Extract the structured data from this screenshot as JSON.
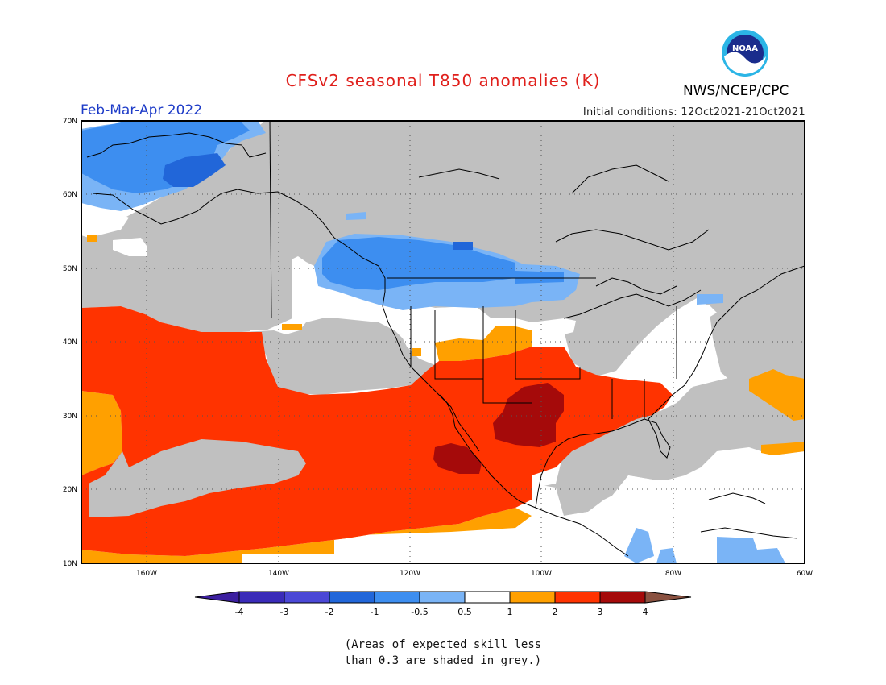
{
  "title": "CFSv2 seasonal T850 anomalies (K)",
  "agency": "NWS/NCEP/CPC",
  "logo_text": "NOAA",
  "season_label": "Feb-Mar-Apr 2022",
  "initial_conditions": "Initial conditions: 12Oct2021-21Oct2021",
  "lat_labels": [
    "70N",
    "60N",
    "50N",
    "40N",
    "30N",
    "20N",
    "10N"
  ],
  "lon_labels": [
    "160W",
    "140W",
    "120W",
    "100W",
    "80W",
    "60W"
  ],
  "colorbar": {
    "labels": [
      "-4",
      "-3",
      "-2",
      "-1",
      "-0.5",
      "0.5",
      "1",
      "2",
      "3",
      "4"
    ],
    "colors": [
      "#3a2bb8",
      "#4b48d6",
      "#2166d9",
      "#3d8ef0",
      "#7ab4f6",
      "#ffffff",
      "#ffa000",
      "#ff3300",
      "#a50a0a",
      "#c8a090"
    ],
    "end_low": "#3c1fa0",
    "end_high": "#8a5140"
  },
  "colors": {
    "grey_low_skill": "#c0c0c0",
    "title_red": "#e0201c",
    "season_blue": "#1e3cc8"
  },
  "footnote": [
    "(Areas of expected skill less",
    "than 0.3 are shaded in grey.)"
  ]
}
